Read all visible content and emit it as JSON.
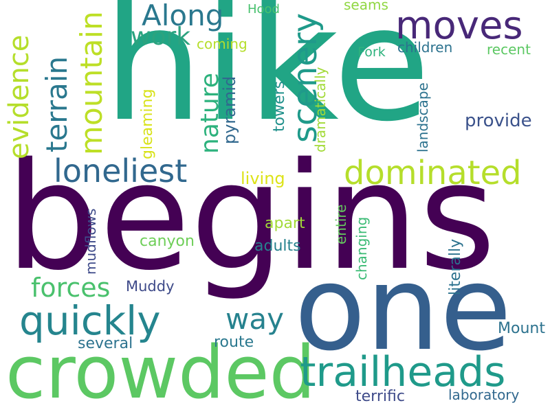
{
  "words": {
    "hike": "hike",
    "begins": "begins",
    "one": "one",
    "crowded": "crowded",
    "trailheads": "trailheads",
    "quickly": "quickly",
    "dominated": "dominated",
    "moves": "moves",
    "loneliest": "loneliest",
    "along": "Along",
    "way": "way",
    "forces": "forces",
    "work": "work",
    "provide": "provide",
    "living": "living",
    "canyon": "canyon",
    "apart": "apart",
    "adults": "adults",
    "muddy": "Muddy",
    "several": "several",
    "route": "route",
    "terrific": "terrific",
    "laboratory": "laboratory",
    "mount": "Mount",
    "coming": "coming",
    "hood": "Hood",
    "seams": "seams",
    "fork": "Fork",
    "children": "children",
    "recent": "recent",
    "evidence": "evidence",
    "terrain": "terrain",
    "mountain": "mountain",
    "scenery": "scenery",
    "nature": "nature",
    "pyramid": "pyramid",
    "gleaming": "gleaming",
    "towers": "towers",
    "dramatically": "dramatically",
    "landscape": "landscape",
    "mudflows": "mudflows",
    "entire": "entire",
    "changing": "changing",
    "literally": "literally"
  }
}
